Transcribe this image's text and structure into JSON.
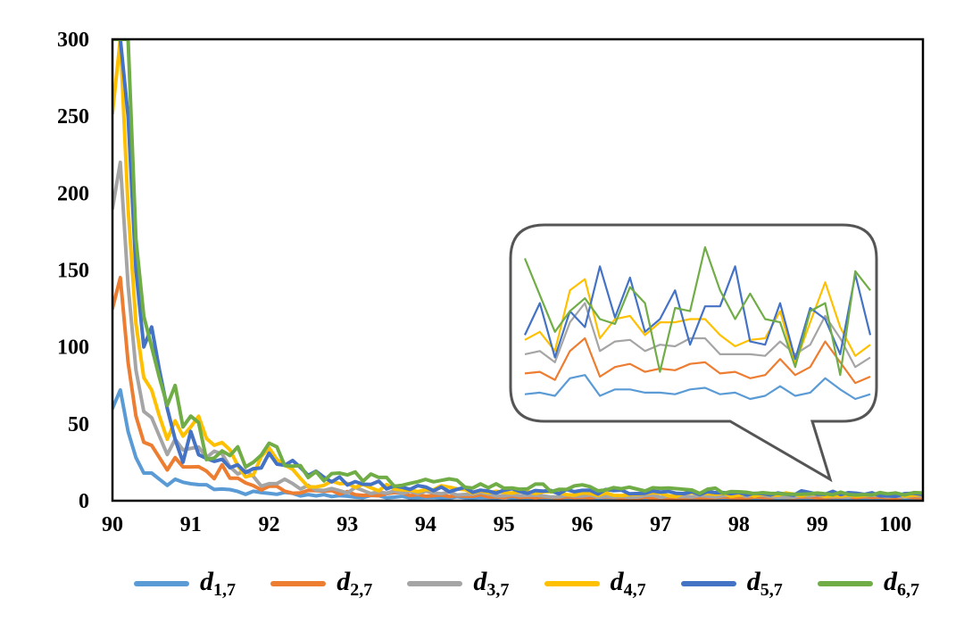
{
  "chart_data": {
    "type": "line",
    "title": "",
    "xlabel": "",
    "ylabel": "",
    "xlim": [
      90,
      100.35
    ],
    "ylim": [
      0,
      300
    ],
    "x_ticks": [
      "90",
      "91",
      "92",
      "93",
      "94",
      "95",
      "96",
      "97",
      "98",
      "99",
      "100"
    ],
    "y_ticks": [
      "0",
      "50",
      "100",
      "150",
      "200",
      "250",
      "300"
    ],
    "grid": false,
    "legend_position": "bottom",
    "inset": {
      "description": "zoomed detail of the series",
      "shape": "callout"
    },
    "series": [
      {
        "name": "d1,7",
        "base": "d",
        "sub": "1,7",
        "color": "#5B9BD5",
        "x": [
          90,
          90.1,
          90.2,
          90.3,
          90.4,
          90.5,
          90.6,
          90.7,
          90.8,
          90.9,
          91,
          91.2,
          91.4,
          91.6,
          91.8,
          92,
          92.5,
          93,
          94,
          95,
          96,
          97,
          98,
          99,
          100,
          100.35
        ],
        "values": [
          60,
          72,
          45,
          28,
          18,
          18,
          14,
          10,
          14,
          12,
          11,
          10,
          9,
          6,
          5,
          5,
          4,
          3,
          2,
          2,
          1,
          1,
          1,
          1,
          1,
          1
        ],
        "inset": [
          73,
          74,
          72,
          83,
          85,
          72,
          76,
          76,
          74,
          74,
          73,
          76,
          77,
          73,
          74,
          70,
          72,
          78,
          72,
          74,
          83,
          76,
          70,
          73
        ]
      },
      {
        "name": "d2,7",
        "base": "d",
        "sub": "2,7",
        "color": "#ED7D31",
        "x": [
          90,
          90.1,
          90.2,
          90.3,
          90.4,
          90.5,
          90.6,
          90.7,
          90.8,
          90.9,
          91,
          91.2,
          91.4,
          91.6,
          91.8,
          92,
          92.5,
          93,
          94,
          95,
          96,
          97,
          98,
          99,
          100,
          100.35
        ],
        "values": [
          125,
          145,
          90,
          55,
          38,
          36,
          28,
          20,
          28,
          22,
          22,
          20,
          18,
          12,
          10,
          8,
          6,
          5,
          4,
          3,
          2,
          2,
          2,
          2,
          2,
          2
        ],
        "inset": [
          86,
          87,
          82,
          100,
          108,
          84,
          90,
          92,
          87,
          89,
          88,
          92,
          93,
          86,
          87,
          83,
          85,
          95,
          85,
          90,
          106,
          93,
          80,
          84
        ]
      },
      {
        "name": "d3,7",
        "base": "d",
        "sub": "3,7",
        "color": "#A5A5A5",
        "x": [
          90,
          90.1,
          90.2,
          90.3,
          90.4,
          90.5,
          90.6,
          90.7,
          90.8,
          90.9,
          91,
          91.2,
          91.4,
          91.6,
          91.8,
          92,
          92.5,
          93,
          94,
          95,
          96,
          97,
          98,
          99,
          100,
          100.35
        ],
        "values": [
          190,
          220,
          140,
          85,
          58,
          54,
          42,
          30,
          40,
          33,
          34,
          30,
          26,
          18,
          14,
          12,
          9,
          7,
          5,
          4,
          3,
          3,
          3,
          3,
          3,
          3
        ],
        "inset": [
          98,
          100,
          93,
          118,
          130,
          100,
          106,
          107,
          100,
          104,
          103,
          108,
          108,
          98,
          98,
          98,
          97,
          106,
          98,
          104,
          122,
          108,
          90,
          96
        ]
      },
      {
        "name": "d4,7",
        "base": "d",
        "sub": "4,7",
        "color": "#FFC000",
        "x": [
          90,
          90.1,
          90.2,
          90.3,
          90.4,
          90.5,
          90.6,
          90.7,
          90.8,
          90.9,
          91,
          91.2,
          91.4,
          91.6,
          91.8,
          92,
          92.5,
          93,
          94,
          95,
          96,
          97,
          98,
          99,
          100,
          100.35
        ],
        "values": [
          252,
          300,
          190,
          115,
          80,
          72,
          55,
          40,
          52,
          42,
          48,
          38,
          42,
          22,
          18,
          30,
          12,
          9,
          8,
          6,
          5,
          4,
          4,
          4,
          4,
          4
        ],
        "inset": [
          107,
          112,
          100,
          138,
          145,
          108,
          120,
          122,
          110,
          118,
          118,
          120,
          120,
          110,
          103,
          107,
          108,
          125,
          92,
          118,
          143,
          115,
          97,
          104
        ]
      },
      {
        "name": "d5,7",
        "base": "d",
        "sub": "5,7",
        "color": "#4472C4",
        "x": [
          90,
          90.1,
          90.2,
          90.3,
          90.4,
          90.5,
          90.6,
          90.7,
          90.8,
          90.9,
          91,
          91.2,
          91.4,
          91.6,
          91.8,
          92,
          92.5,
          93,
          94,
          95,
          96,
          97,
          98,
          99,
          100,
          100.35
        ],
        "values": [
          300,
          300,
          250,
          150,
          100,
          113,
          85,
          60,
          40,
          25,
          45,
          35,
          30,
          26,
          22,
          26,
          18,
          12,
          8,
          7,
          6,
          5,
          5,
          5,
          4,
          4
        ],
        "inset": [
          110,
          130,
          96,
          125,
          115,
          153,
          121,
          146,
          112,
          120,
          138,
          104,
          128,
          128,
          153,
          106,
          104,
          130,
          95,
          127,
          120,
          98,
          148,
          110
        ]
      },
      {
        "name": "d6,7",
        "base": "d",
        "sub": "6,7",
        "color": "#70AD47",
        "x": [
          90,
          90.1,
          90.2,
          90.3,
          90.4,
          90.5,
          90.6,
          90.7,
          90.8,
          90.9,
          91,
          91.2,
          91.4,
          91.6,
          91.8,
          92,
          92.5,
          93,
          94,
          95,
          96,
          97,
          98,
          99,
          100,
          100.35
        ],
        "values": [
          300,
          300,
          300,
          170,
          120,
          100,
          80,
          62,
          75,
          48,
          55,
          38,
          40,
          27,
          35,
          36,
          20,
          15,
          12,
          9,
          8,
          7,
          6,
          5,
          5,
          5
        ],
        "inset": [
          158,
          135,
          112,
          125,
          133,
          120,
          117,
          140,
          130,
          87,
          127,
          125,
          165,
          138,
          120,
          136,
          120,
          118,
          90,
          125,
          130,
          85,
          150,
          138
        ]
      }
    ]
  }
}
